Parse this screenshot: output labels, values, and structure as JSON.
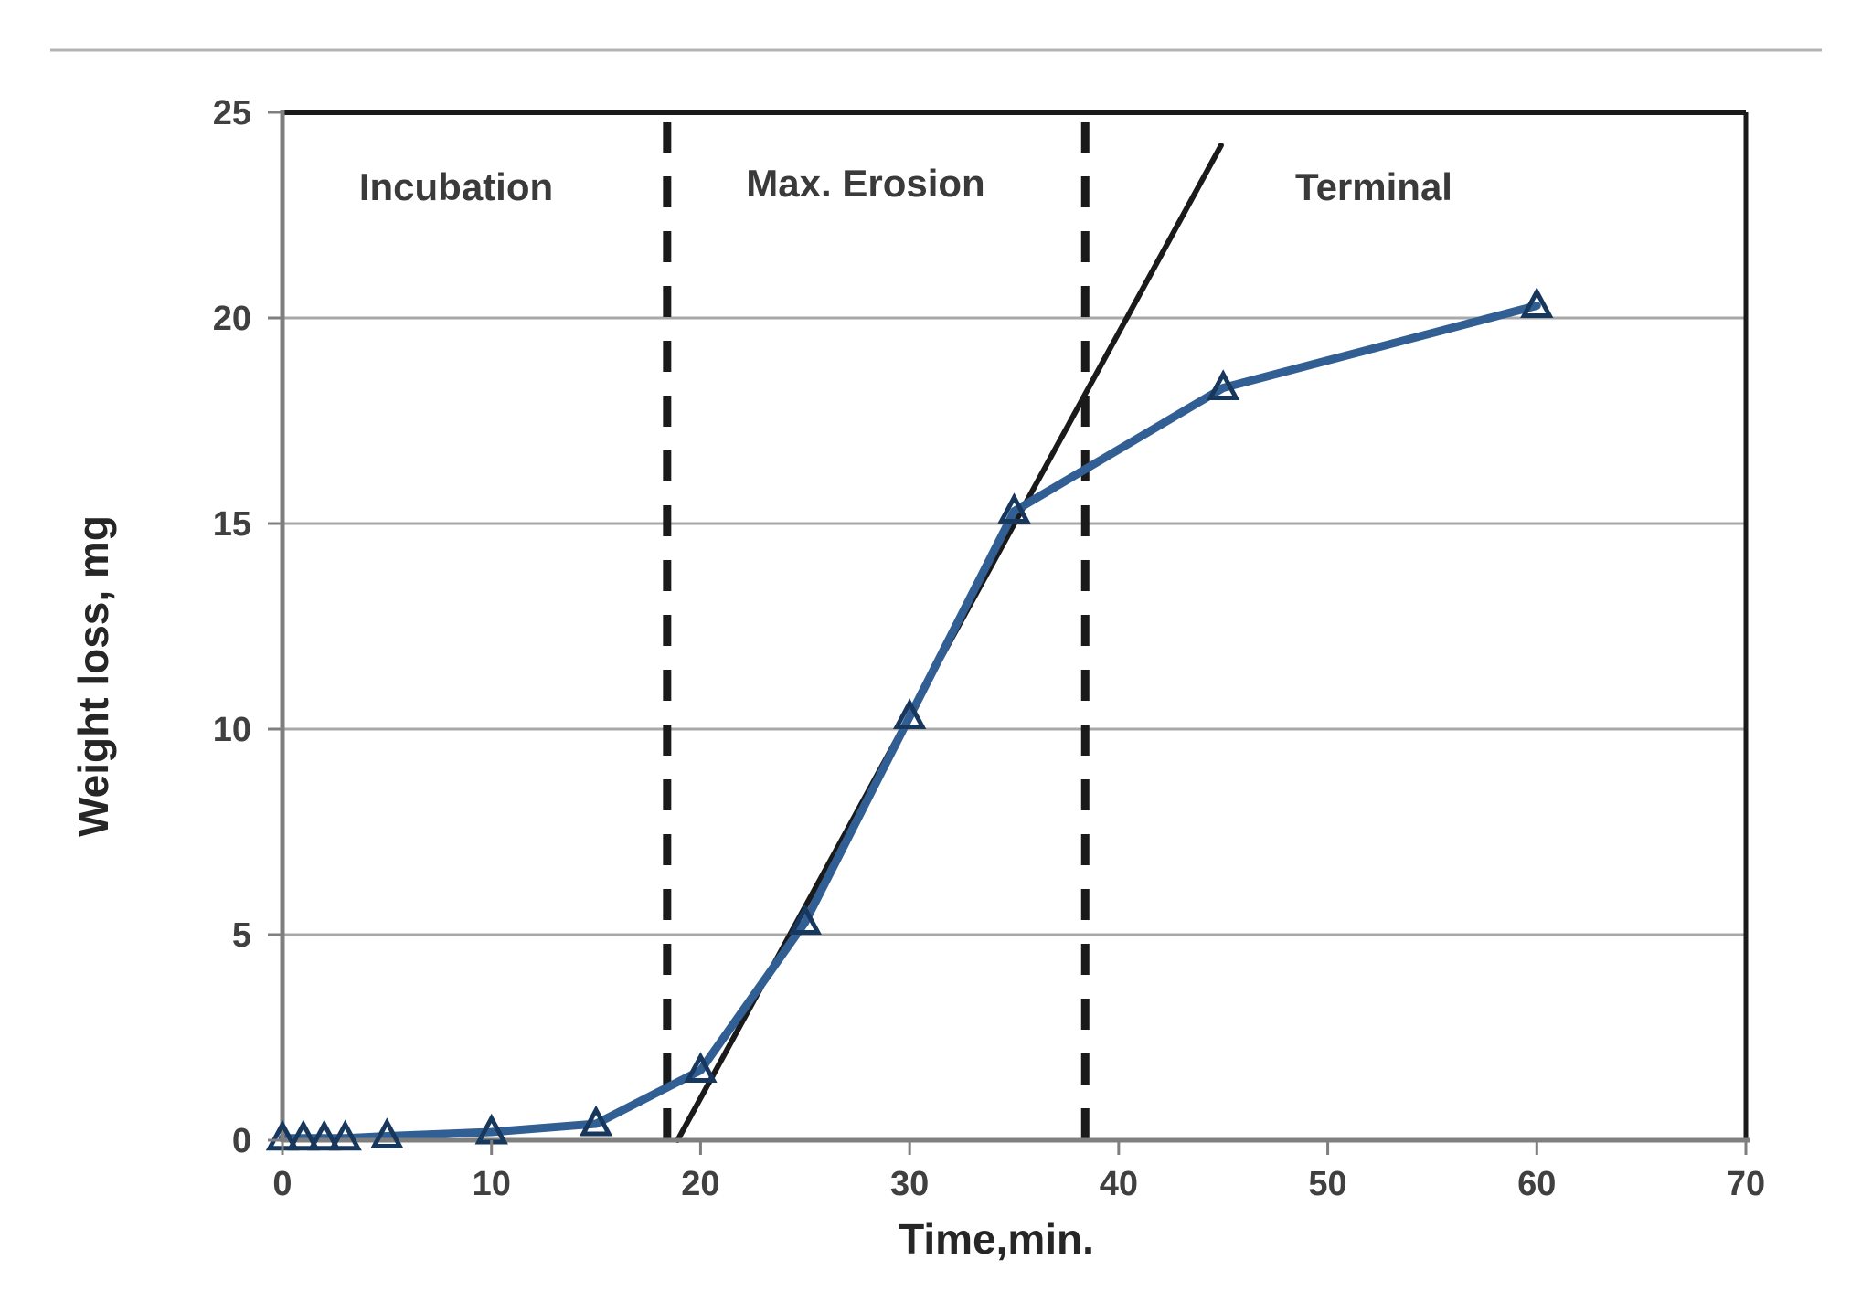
{
  "page": {
    "background": "#ffffff",
    "top_rule_color": "#b3b3b3"
  },
  "chart_data": {
    "type": "line",
    "title": "",
    "xlabel": "Time,min.",
    "ylabel": "Weight loss, mg",
    "xlim": [
      0,
      70
    ],
    "ylim": [
      0,
      25
    ],
    "xticks": [
      0,
      10,
      20,
      30,
      40,
      50,
      60,
      70
    ],
    "yticks": [
      0,
      5,
      10,
      15,
      20,
      25
    ],
    "grid": "horizontal",
    "legend": "none",
    "colors": {
      "series_line": "#315f94",
      "marker_edge": "#17375d",
      "tangent_line": "#1a1a1a",
      "dashed_boundary": "#1a1a1a",
      "gridline": "#a8a8a8",
      "axis_line": "#7f7f7f",
      "plot_border": "#1a1a1a"
    },
    "series": [
      {
        "name": "weight loss curve",
        "marker": "open-triangle",
        "points": [
          [
            0,
            0.05
          ],
          [
            1,
            0.05
          ],
          [
            2,
            0.05
          ],
          [
            3,
            0.05
          ],
          [
            5,
            0.1
          ],
          [
            10,
            0.2
          ],
          [
            15,
            0.4
          ],
          [
            20,
            1.7
          ],
          [
            25,
            5.3
          ],
          [
            30,
            10.3
          ],
          [
            35,
            15.3
          ],
          [
            45,
            18.3
          ],
          [
            60,
            20.3
          ]
        ]
      },
      {
        "name": "max erosion tangent",
        "marker": "none",
        "points": [
          [
            18.9,
            0
          ],
          [
            44.9,
            24.2
          ]
        ]
      }
    ],
    "phase_boundaries": [
      {
        "x": 18.4
      },
      {
        "x": 38.4
      }
    ],
    "annotations": [
      {
        "text": "Incubation",
        "x": 8.3,
        "y": 23.2
      },
      {
        "text": "Max. Erosion",
        "x": 27.9,
        "y": 23.3
      },
      {
        "text": "Terminal",
        "x": 52.2,
        "y": 23.2
      }
    ]
  }
}
